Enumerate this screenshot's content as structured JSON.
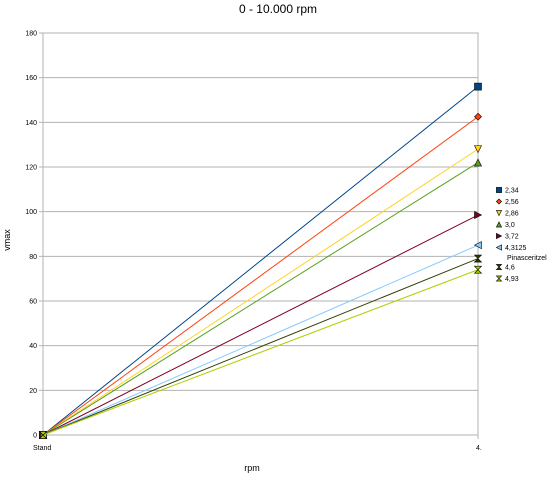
{
  "chart_data": {
    "type": "line",
    "title": "0 - 10.000 rpm",
    "xlabel": "rpm",
    "ylabel": "vmax",
    "categories": [
      "Stand",
      "4."
    ],
    "ylim": [
      0,
      180
    ],
    "yticks": [
      0,
      20,
      40,
      60,
      80,
      100,
      120,
      140,
      160,
      180
    ],
    "grid": "horizontal",
    "legend": "right",
    "series": [
      {
        "name": "2,34",
        "values": [
          0,
          156
        ],
        "color": "#004586",
        "marker": "square"
      },
      {
        "name": "2,56",
        "values": [
          0,
          142.5
        ],
        "color": "#ff420e",
        "marker": "diamond"
      },
      {
        "name": "2,86",
        "values": [
          0,
          128
        ],
        "color": "#ffd320",
        "marker": "triangle-down"
      },
      {
        "name": "3,0",
        "values": [
          0,
          122
        ],
        "color": "#579d1c",
        "marker": "triangle-up"
      },
      {
        "name": "3,72",
        "values": [
          0,
          98.5
        ],
        "color": "#7e0021",
        "marker": "triangle-right"
      },
      {
        "name": "4,3125 Pinasceritzel",
        "values": [
          0,
          85
        ],
        "color": "#83caff",
        "marker": "triangle-left"
      },
      {
        "name": "4,6",
        "values": [
          0,
          79
        ],
        "color": "#314004",
        "marker": "bowtie"
      },
      {
        "name": "4,93",
        "values": [
          0,
          74
        ],
        "color": "#aecf00",
        "marker": "hourglass"
      }
    ]
  }
}
